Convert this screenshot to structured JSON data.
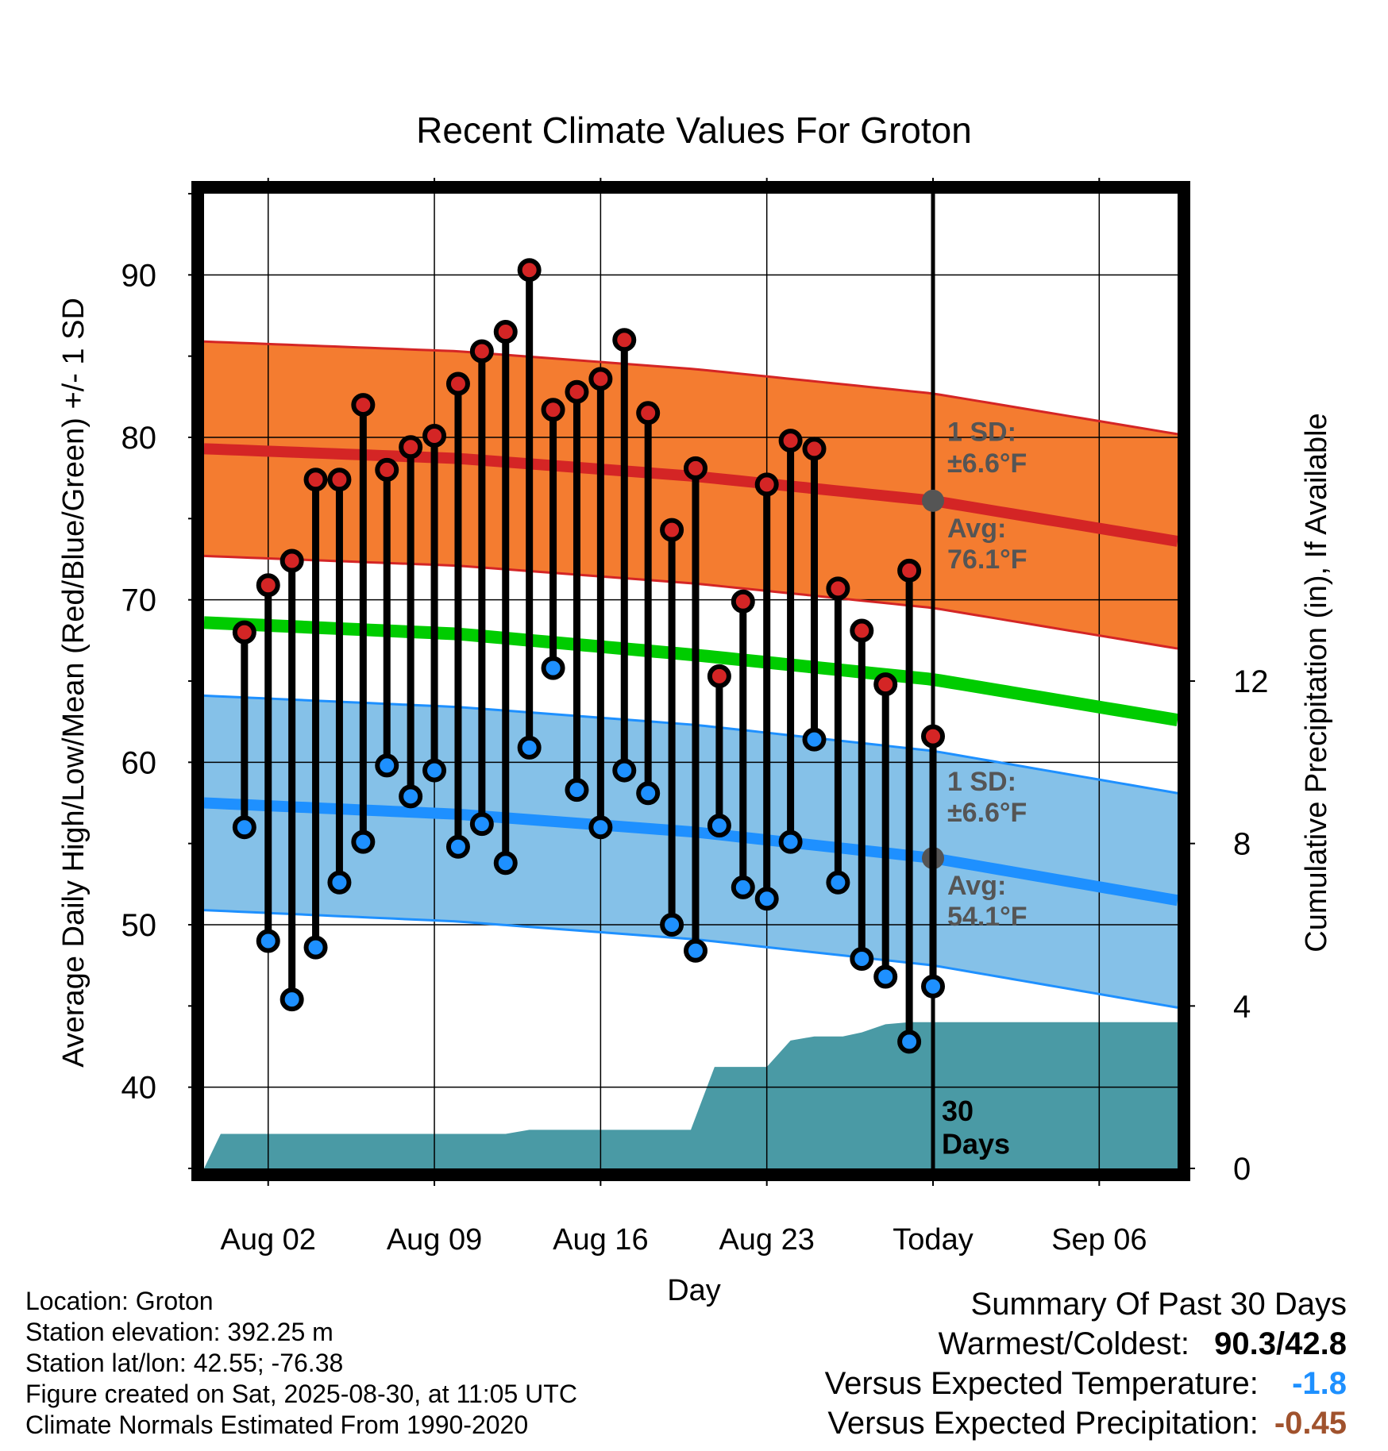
{
  "chart_data": {
    "type": "line",
    "title": "Recent Climate Values For Groton",
    "xlabel": "Day",
    "ylabel_left": "Average Daily High/Low/Mean (Red/Blue/Green) +/- 1 SD",
    "ylabel_right": "Cumulative Precipitation (in), If Available",
    "y_ticks_left": [
      "40",
      "50",
      "60",
      "70",
      "80",
      "90"
    ],
    "y_ticks_right": [
      "0",
      "4",
      "8",
      "12"
    ],
    "x_ticks": [
      "Aug 02",
      "Aug 09",
      "Aug 16",
      "Aug 23",
      "Today",
      "Sep 06"
    ],
    "ylim_left": [
      35,
      95
    ],
    "ylim_right": [
      0,
      24
    ],
    "x_range_days": [
      -0.7,
      40.3
    ],
    "x_ticks_day": [
      2,
      9,
      16,
      23,
      30,
      37
    ],
    "today_day": 30,
    "today_label": "30\nDays",
    "daily_high": [
      68.0,
      70.9,
      72.4,
      77.4,
      77.4,
      82.0,
      78.0,
      79.4,
      80.1,
      83.3,
      85.3,
      86.5,
      90.3,
      81.7,
      82.8,
      83.6,
      86.0,
      81.5,
      74.3,
      78.1,
      65.3,
      69.9,
      77.1,
      79.8,
      79.3,
      70.7,
      68.1,
      64.8,
      71.8,
      61.6
    ],
    "daily_low": [
      56.0,
      49.0,
      45.4,
      48.6,
      52.6,
      55.1,
      59.8,
      57.9,
      59.5,
      54.8,
      56.2,
      53.8,
      60.9,
      65.8,
      58.3,
      56.0,
      59.5,
      58.1,
      50.0,
      48.4,
      56.1,
      52.3,
      51.6,
      55.1,
      61.4,
      52.6,
      47.9,
      46.8,
      42.8,
      46.2
    ],
    "normal_high": [
      {
        "day": -0.7,
        "value": 79.3
      },
      {
        "day": 10,
        "value": 78.7
      },
      {
        "day": 20,
        "value": 77.6
      },
      {
        "day": 30,
        "value": 76.1
      },
      {
        "day": 40.3,
        "value": 73.6
      }
    ],
    "normal_low": [
      {
        "day": -0.7,
        "value": 57.5
      },
      {
        "day": 10,
        "value": 56.8
      },
      {
        "day": 20,
        "value": 55.7
      },
      {
        "day": 30,
        "value": 54.1
      },
      {
        "day": 40.3,
        "value": 51.5
      }
    ],
    "normal_mean": [
      {
        "day": -0.7,
        "value": 68.6
      },
      {
        "day": 10,
        "value": 67.9
      },
      {
        "day": 20,
        "value": 66.6
      },
      {
        "day": 30,
        "value": 65.1
      },
      {
        "day": 40.3,
        "value": 62.6
      }
    ],
    "sd_high": 6.6,
    "sd_low": 6.6,
    "precip_cumulative": [
      {
        "day": -0.7,
        "value": 0.0
      },
      {
        "day": 0,
        "value": 0.85
      },
      {
        "day": 12,
        "value": 0.85
      },
      {
        "day": 13,
        "value": 0.95
      },
      {
        "day": 19.8,
        "value": 0.95
      },
      {
        "day": 20.8,
        "value": 2.5
      },
      {
        "day": 23,
        "value": 2.5
      },
      {
        "day": 24,
        "value": 3.15
      },
      {
        "day": 25,
        "value": 3.25
      },
      {
        "day": 26.2,
        "value": 3.25
      },
      {
        "day": 27,
        "value": 3.35
      },
      {
        "day": 28,
        "value": 3.55
      },
      {
        "day": 29,
        "value": 3.6
      },
      {
        "day": 40.3,
        "value": 3.6
      }
    ],
    "high_sd_label": "1 SD:\n±6.6°F",
    "high_avg_label": "Avg:\n76.1°F",
    "low_sd_label": "1 SD:\n±6.6°F",
    "low_avg_label": "Avg:\n54.1°F",
    "grid": true,
    "colors": {
      "high_band": "#f47c30",
      "high_line": "#d42525",
      "high_dot": "#d42525",
      "low_band": "#85c1e8",
      "low_line": "#1e90ff",
      "low_dot": "#1e90ff",
      "mean_line": "#00cc00",
      "precip": "#4a9aa5",
      "annotation": "#555555"
    }
  },
  "info": {
    "location": "Location: Groton",
    "elevation": "Station elevation: 392.25 m",
    "latlon": "Station lat/lon: 42.55; -76.38",
    "created": "Figure created on Sat, 2025-08-30, at 11:05 UTC",
    "normals": "Climate Normals Estimated From 1990-2020"
  },
  "summary": {
    "title": "Summary Of Past 30 Days",
    "warm_cold_label": "Warmest/Coldest:",
    "warmest": "90.3",
    "slash": "/",
    "coldest": "42.8",
    "temp_label": "Versus Expected Temperature:",
    "temp_value": "-1.8",
    "temp_color": "#1e90ff",
    "precip_label": "Versus Expected Precipitation:",
    "precip_value": "-0.45",
    "precip_color": "#a0522d"
  }
}
